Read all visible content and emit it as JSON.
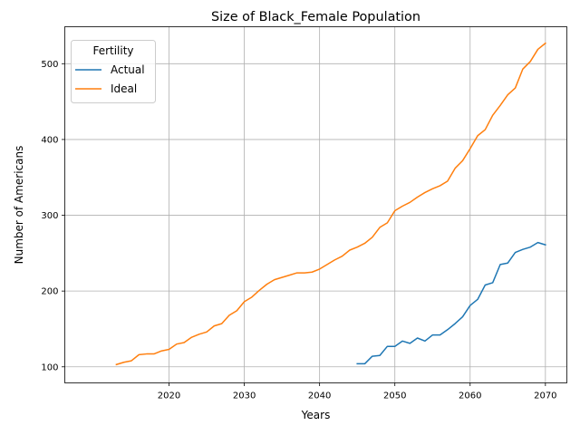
{
  "chart_data": {
    "type": "line",
    "title": "Size of Black_Female Population",
    "xlabel": "Years",
    "ylabel": "Number of Americans",
    "xlim": [
      2006.15,
      2072.85
    ],
    "ylim": [
      78.8,
      548.8
    ],
    "xticks": [
      2020,
      2030,
      2040,
      2050,
      2060,
      2070
    ],
    "yticks": [
      100,
      200,
      300,
      400,
      500
    ],
    "grid": true,
    "legend": {
      "title": "Fertility",
      "placement": "top-left"
    },
    "series": [
      {
        "name": "Actual",
        "color": "#1f77b4",
        "x": [
          2045,
          2046,
          2047,
          2048,
          2049,
          2050,
          2051,
          2052,
          2053,
          2054,
          2055,
          2056,
          2057,
          2058,
          2059,
          2060,
          2061,
          2062,
          2063,
          2064,
          2065,
          2066,
          2067,
          2068,
          2069,
          2070
        ],
        "y": [
          104,
          104,
          114,
          115,
          127,
          127,
          134,
          131,
          138,
          134,
          142,
          142,
          149,
          157,
          166,
          181,
          189,
          208,
          211,
          235,
          237,
          251,
          255,
          258,
          264,
          261
        ]
      },
      {
        "name": "Ideal",
        "color": "#ff7f0e",
        "x": [
          2013,
          2014,
          2015,
          2016,
          2017,
          2018,
          2019,
          2020,
          2021,
          2022,
          2023,
          2024,
          2025,
          2026,
          2027,
          2028,
          2029,
          2030,
          2031,
          2032,
          2033,
          2034,
          2035,
          2036,
          2037,
          2038,
          2039,
          2040,
          2041,
          2042,
          2043,
          2044,
          2045,
          2046,
          2047,
          2048,
          2049,
          2050,
          2051,
          2052,
          2053,
          2054,
          2055,
          2056,
          2057,
          2058,
          2059,
          2060,
          2061,
          2062,
          2063,
          2064,
          2065,
          2066,
          2067,
          2068,
          2069,
          2070
        ],
        "y": [
          103,
          106,
          108,
          116,
          117,
          117,
          121,
          123,
          130,
          132,
          139,
          143,
          146,
          154,
          157,
          168,
          174,
          186,
          192,
          201,
          209,
          215,
          218,
          221,
          224,
          224,
          225,
          229,
          235,
          241,
          246,
          254,
          258,
          263,
          271,
          284,
          290,
          306,
          312,
          317,
          324,
          330,
          335,
          339,
          345,
          362,
          372,
          388,
          405,
          413,
          432,
          445,
          459,
          468,
          493,
          503,
          519,
          527
        ]
      }
    ]
  }
}
